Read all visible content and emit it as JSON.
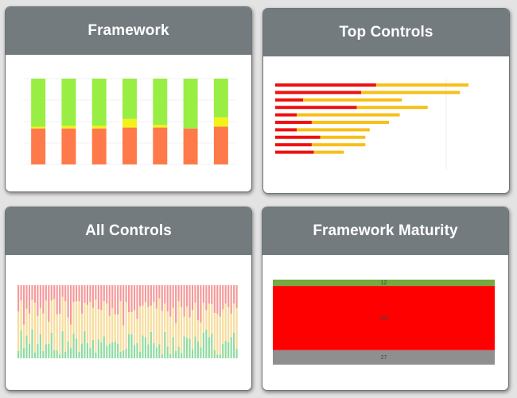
{
  "cards": {
    "framework": {
      "title": "Framework"
    },
    "top_controls": {
      "title": "Top Controls"
    },
    "all_controls": {
      "title": "All Controls"
    },
    "framework_maturity": {
      "title": "Framework Maturity"
    }
  },
  "colors": {
    "green": "#99ee44",
    "yellow": "#f2f21a",
    "orange": "#ff7a4a",
    "red": "#ee1111",
    "amber": "#f8bf1a",
    "pastel_red": "#f59a9a",
    "pastel_amber": "#f7dc9a",
    "pastel_green": "#8fdba0",
    "maturity_green": "#78a840",
    "maturity_red": "#ff0000",
    "maturity_grey": "#8f8f8f"
  },
  "chart_data": [
    {
      "id": "framework",
      "type": "bar",
      "stacked": true,
      "categories": [
        "",
        "",
        "",
        "",
        "",
        "",
        ""
      ],
      "series": [
        {
          "values": [
            42,
            42,
            42,
            43,
            43,
            42,
            44
          ]
        },
        {
          "values": [
            2,
            3,
            3,
            10,
            3,
            0,
            11
          ]
        },
        {
          "values": [
            56,
            55,
            55,
            47,
            54,
            58,
            45
          ]
        }
      ],
      "ylim": [
        0,
        100
      ]
    },
    {
      "id": "top_controls",
      "type": "bar",
      "orientation": "horizontal",
      "stacked": true,
      "categories": [
        "",
        "",
        "",
        "",
        "",
        "",
        "",
        "",
        "",
        ""
      ],
      "series": [
        {
          "values": [
            47,
            40,
            13,
            38,
            10,
            17,
            10,
            21,
            17,
            18
          ]
        },
        {
          "values": [
            43,
            46,
            46,
            33,
            48,
            36,
            34,
            21,
            25,
            14
          ]
        }
      ],
      "xlim": [
        0,
        100
      ]
    },
    {
      "id": "all_controls",
      "type": "bar",
      "stacked": true,
      "bar_count": 80,
      "series": [
        {
          "values": [
            10,
            38,
            14,
            31,
            20,
            40,
            8,
            20,
            33,
            10,
            19,
            20,
            35,
            11,
            11,
            5,
            37,
            9,
            23,
            14,
            34,
            27,
            9,
            20,
            37,
            21,
            14,
            25,
            8,
            26,
            22,
            30,
            17,
            20,
            22,
            23,
            20,
            9,
            11,
            13,
            33,
            33,
            18,
            21,
            9,
            31,
            29,
            19,
            36,
            21,
            15,
            19,
            5,
            36,
            16,
            6,
            29,
            10,
            16,
            7,
            30,
            28,
            27,
            12,
            30,
            23,
            15,
            35,
            39,
            29,
            34,
            11,
            5,
            5,
            20,
            24,
            22,
            29,
            35,
            13
          ]
        },
        {
          "values": [
            54,
            41,
            32,
            37,
            41,
            40,
            68,
            38,
            36,
            51,
            60,
            30,
            44,
            70,
            49,
            56,
            47,
            69,
            33,
            32,
            43,
            51,
            69,
            41,
            39,
            52,
            63,
            44,
            72,
            41,
            44,
            48,
            58,
            38,
            47,
            37,
            40,
            69,
            34,
            64,
            30,
            30,
            48,
            33,
            62,
            41,
            48,
            51,
            36,
            56,
            53,
            63,
            60,
            39,
            48,
            51,
            40,
            38,
            62,
            63,
            27,
            43,
            29,
            54,
            46,
            29,
            34,
            41,
            27,
            46,
            40,
            51,
            56,
            52,
            47,
            51,
            48,
            32,
            40,
            56
          ]
        },
        {
          "values": [
            36,
            21,
            54,
            32,
            39,
            20,
            24,
            42,
            31,
            39,
            21,
            50,
            21,
            19,
            40,
            39,
            16,
            22,
            44,
            54,
            23,
            22,
            22,
            39,
            24,
            27,
            23,
            31,
            20,
            33,
            34,
            22,
            25,
            42,
            31,
            40,
            40,
            22,
            55,
            23,
            37,
            37,
            34,
            46,
            29,
            28,
            23,
            30,
            28,
            23,
            32,
            18,
            35,
            25,
            36,
            43,
            31,
            52,
            22,
            30,
            43,
            29,
            44,
            34,
            24,
            48,
            51,
            24,
            34,
            25,
            26,
            38,
            39,
            43,
            33,
            25,
            30,
            39,
            25,
            31
          ]
        }
      ],
      "ylim": [
        0,
        100
      ]
    },
    {
      "id": "framework_maturity",
      "type": "bar",
      "stacked": true,
      "categories": [
        ""
      ],
      "series": [
        {
          "values": [
            12
          ],
          "label": "12"
        },
        {
          "values": [
            120
          ],
          "label": "120"
        },
        {
          "values": [
            27
          ],
          "label": "27"
        }
      ]
    }
  ]
}
